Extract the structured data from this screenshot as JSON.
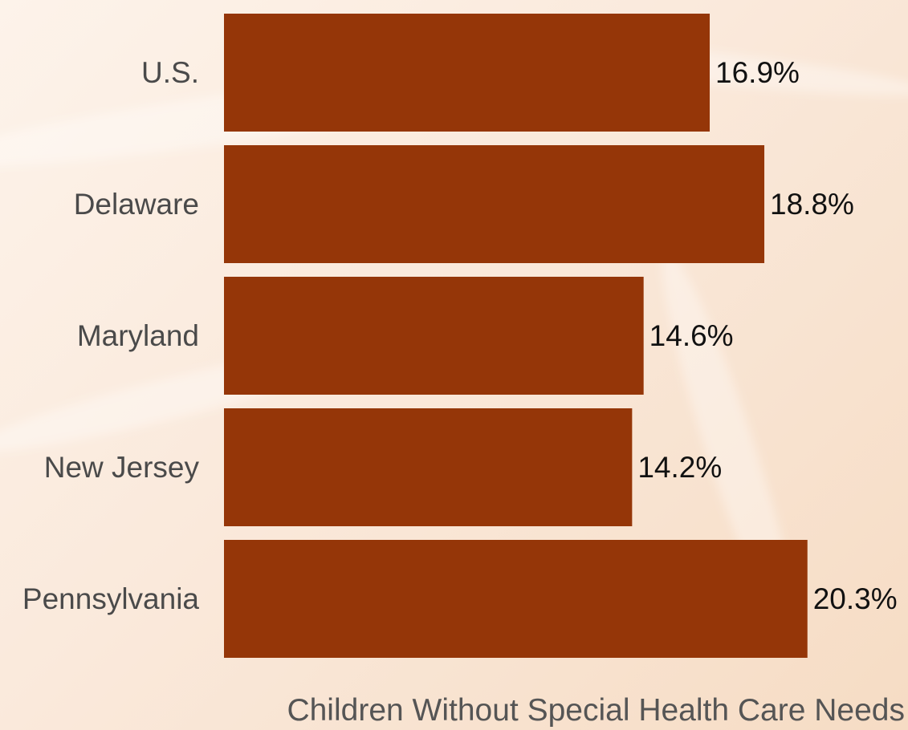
{
  "colors": {
    "bar": "#953608",
    "category_text": "#4a4a4a",
    "value_text": "#111111",
    "title_text": "#555555"
  },
  "chart_data": {
    "type": "bar",
    "orientation": "horizontal",
    "title": "Children Without Special Health Care Needs",
    "categories": [
      "U.S.",
      "Delaware",
      "Maryland",
      "New Jersey",
      "Pennsylvania"
    ],
    "values": [
      16.9,
      18.8,
      14.6,
      14.2,
      20.3
    ],
    "value_labels": [
      "16.9%",
      "18.8%",
      "14.6%",
      "14.2%",
      "20.3%"
    ],
    "xlabel": "",
    "ylabel": "",
    "grid": false,
    "legend": "none"
  }
}
